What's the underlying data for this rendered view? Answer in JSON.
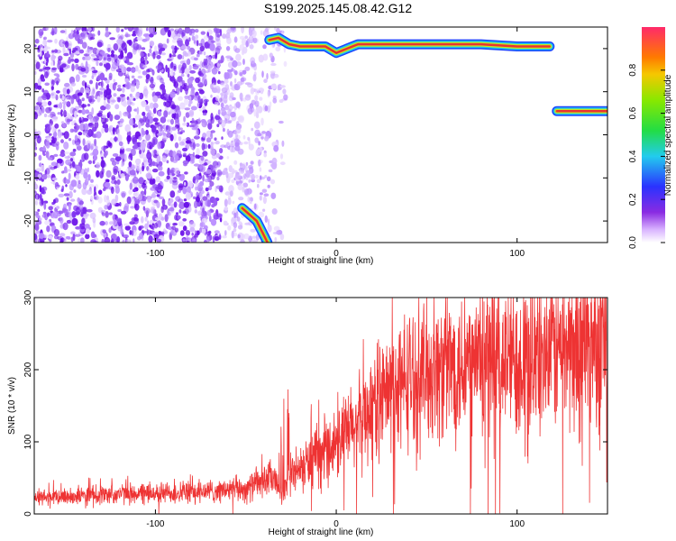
{
  "title": "S199.2025.145.08.42.G12",
  "colors": {
    "snr_line": "#ee3333",
    "scatter_purple": "#7b2cf0",
    "track_core": "#e83232",
    "track_mid": "#c8e81a",
    "track_outer": "#22c8e8",
    "track_edge": "#1a44ff"
  },
  "chart_data": [
    {
      "type": "heatmap",
      "title": "S199.2025.145.08.42.G12",
      "xlabel": "Height of straight line (km)",
      "ylabel": "Frequency (Hz)",
      "xlim": [
        -167,
        150
      ],
      "ylim": [
        -25,
        25
      ],
      "x_ticks": [
        -100,
        0,
        100
      ],
      "x_tick_labels": [
        "-100",
        "0",
        "100"
      ],
      "y_ticks": [
        -20,
        -10,
        0,
        10,
        20
      ],
      "y_tick_labels": [
        "-20",
        "-10",
        "0",
        "10",
        "20"
      ],
      "colorbar": {
        "label": "Normalized spectral amplitude",
        "range": [
          0,
          1
        ],
        "ticks": [
          0.0,
          0.2,
          0.4,
          0.6,
          0.8
        ],
        "tick_labels": [
          "0.0",
          "0.2",
          "0.4",
          "0.6",
          "0.8"
        ],
        "colormap": "rainbow (purple to red)"
      },
      "noise_region_x": [
        -167,
        -28
      ],
      "ridges": [
        {
          "x": [
            -37,
            -32,
            -26,
            -20,
            -12,
            -6,
            0,
            6,
            12,
            20,
            40,
            60,
            80,
            100,
            118
          ],
          "y": [
            22,
            22.5,
            21,
            20.5,
            20.5,
            20.5,
            19,
            20,
            21,
            21,
            21,
            21,
            21,
            20.5,
            20.5
          ]
        },
        {
          "x": [
            122,
            150
          ],
          "y": [
            5.5,
            5.5
          ]
        },
        {
          "x": [
            -52,
            -44,
            -38
          ],
          "y": [
            -17,
            -20,
            -25
          ]
        }
      ]
    },
    {
      "type": "line",
      "xlabel": "Height of straight line (km)",
      "ylabel": "SNR (10 * v/v)",
      "xlim": [
        -167,
        150
      ],
      "ylim": [
        0,
        300
      ],
      "x_ticks": [
        -100,
        0,
        100
      ],
      "x_tick_labels": [
        "-100",
        "0",
        "100"
      ],
      "y_ticks": [
        0,
        100,
        200,
        300
      ],
      "y_tick_labels": [
        "0",
        "100",
        "200",
        "300"
      ],
      "trend": {
        "x": [
          -167,
          -120,
          -80,
          -50,
          -36,
          -30,
          -25,
          -10,
          0,
          10,
          20,
          30,
          40,
          55,
          70,
          90,
          110,
          130,
          150
        ],
        "y": [
          22,
          28,
          30,
          35,
          50,
          30,
          55,
          80,
          100,
          120,
          150,
          170,
          190,
          200,
          210,
          215,
          220,
          235,
          245
        ]
      }
    }
  ]
}
